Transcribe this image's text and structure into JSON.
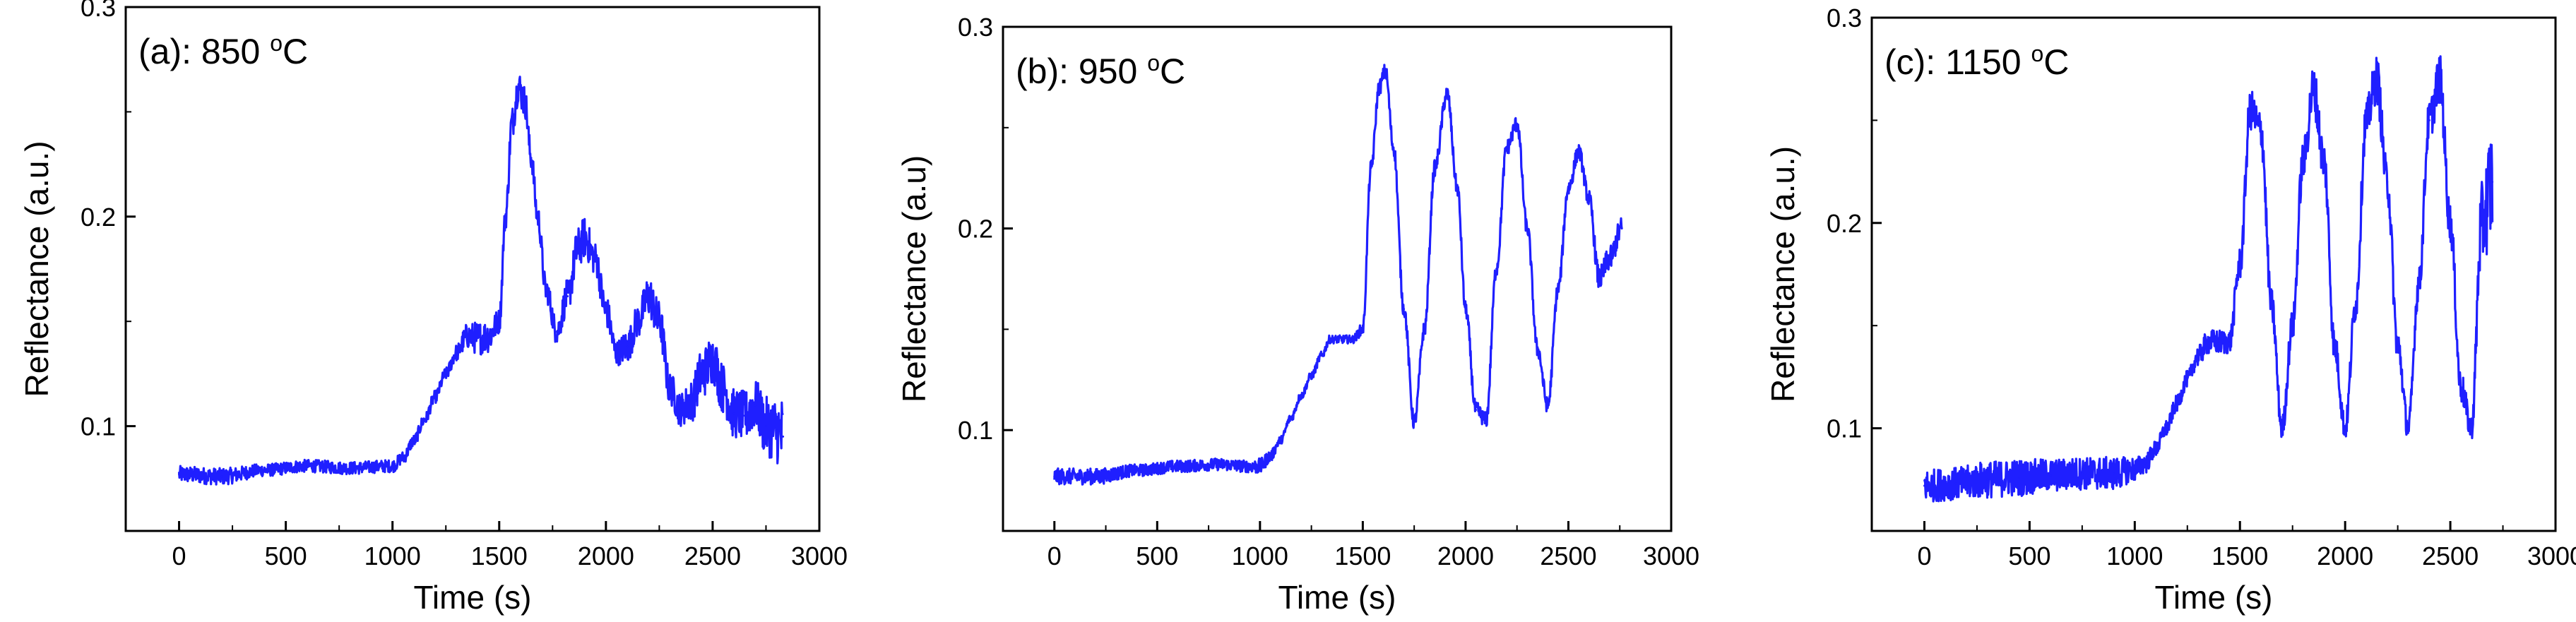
{
  "chart_data": [
    {
      "id": "a",
      "type": "line",
      "panel_label": "(a): 850 ",
      "temp_superscript": "o",
      "temp_unit": "C",
      "xlabel": "Time (s)",
      "ylabel": "Reflectance (a.u.)",
      "xlim": [
        -250,
        3000
      ],
      "ylim": [
        0.05,
        0.3
      ],
      "xticks": [
        0,
        500,
        1000,
        1500,
        2000,
        2500,
        3000
      ],
      "xtick_labels": [
        "0",
        "500",
        "1000",
        "1500",
        "2000",
        "2500",
        "3000"
      ],
      "yticks": [
        0.1,
        0.2,
        0.3
      ],
      "ytick_labels": [
        "0.1",
        "0.2",
        "0.3"
      ],
      "series_color": "#1f1fff",
      "series": [
        {
          "name": "850 °C",
          "x": [
            0,
            200,
            400,
            600,
            800,
            1000,
            1050,
            1100,
            1150,
            1200,
            1250,
            1300,
            1350,
            1400,
            1450,
            1500,
            1530,
            1560,
            1590,
            1620,
            1650,
            1680,
            1720,
            1770,
            1820,
            1870,
            1900,
            1950,
            2000,
            2050,
            2100,
            2150,
            2200,
            2250,
            2300,
            2350,
            2400,
            2450,
            2500,
            2550,
            2600,
            2650,
            2700,
            2750,
            2800,
            2830
          ],
          "y": [
            0.077,
            0.076,
            0.079,
            0.081,
            0.08,
            0.081,
            0.085,
            0.093,
            0.103,
            0.114,
            0.125,
            0.135,
            0.143,
            0.142,
            0.143,
            0.15,
            0.2,
            0.245,
            0.262,
            0.255,
            0.228,
            0.2,
            0.165,
            0.145,
            0.162,
            0.185,
            0.19,
            0.18,
            0.155,
            0.135,
            0.138,
            0.15,
            0.162,
            0.15,
            0.118,
            0.108,
            0.112,
            0.125,
            0.132,
            0.118,
            0.106,
            0.105,
            0.11,
            0.1,
            0.098,
            0.095
          ],
          "noise": [
            0.004,
            0.004,
            0.003,
            0.003,
            0.003,
            0.003,
            0.003,
            0.003,
            0.003,
            0.003,
            0.003,
            0.004,
            0.006,
            0.008,
            0.008,
            0.006,
            0.006,
            0.008,
            0.008,
            0.008,
            0.006,
            0.006,
            0.006,
            0.006,
            0.008,
            0.01,
            0.01,
            0.008,
            0.008,
            0.006,
            0.008,
            0.008,
            0.01,
            0.01,
            0.008,
            0.008,
            0.01,
            0.012,
            0.012,
            0.012,
            0.012,
            0.012,
            0.012,
            0.014,
            0.016,
            0.02
          ]
        }
      ]
    },
    {
      "id": "b",
      "type": "line",
      "panel_label": "(b): 950 ",
      "temp_superscript": "o",
      "temp_unit": "C",
      "xlabel": "Time (s)",
      "ylabel": "Reflectance (a.u)",
      "xlim": [
        -250,
        3000
      ],
      "ylim": [
        0.05,
        0.3
      ],
      "xticks": [
        0,
        500,
        1000,
        1500,
        2000,
        2500,
        3000
      ],
      "xtick_labels": [
        "0",
        "500",
        "1000",
        "1500",
        "2000",
        "2500",
        "3000"
      ],
      "yticks": [
        0.1,
        0.2,
        0.3
      ],
      "ytick_labels": [
        "0.1",
        "0.2",
        "0.3"
      ],
      "series_color": "#1f1fff",
      "series": [
        {
          "name": "950 °C",
          "x": [
            0,
            200,
            400,
            600,
            800,
            950,
            1000,
            1050,
            1100,
            1150,
            1200,
            1250,
            1300,
            1340,
            1400,
            1450,
            1500,
            1540,
            1580,
            1610,
            1650,
            1700,
            1750,
            1800,
            1850,
            1910,
            1960,
            2000,
            2050,
            2100,
            2150,
            2200,
            2250,
            2300,
            2350,
            2400,
            2450,
            2500,
            2550,
            2600,
            2650,
            2700,
            2760
          ],
          "y": [
            0.077,
            0.077,
            0.08,
            0.082,
            0.083,
            0.082,
            0.082,
            0.087,
            0.095,
            0.106,
            0.117,
            0.127,
            0.137,
            0.145,
            0.145,
            0.145,
            0.15,
            0.23,
            0.27,
            0.278,
            0.24,
            0.16,
            0.104,
            0.15,
            0.23,
            0.267,
            0.22,
            0.16,
            0.11,
            0.105,
            0.18,
            0.24,
            0.252,
            0.2,
            0.14,
            0.112,
            0.17,
            0.22,
            0.238,
            0.215,
            0.175,
            0.185,
            0.2
          ],
          "noise": [
            0.004,
            0.004,
            0.003,
            0.003,
            0.003,
            0.003,
            0.004,
            0.003,
            0.002,
            0.002,
            0.002,
            0.002,
            0.002,
            0.002,
            0.002,
            0.002,
            0.003,
            0.004,
            0.004,
            0.004,
            0.004,
            0.004,
            0.004,
            0.004,
            0.004,
            0.004,
            0.004,
            0.004,
            0.004,
            0.004,
            0.004,
            0.004,
            0.004,
            0.004,
            0.004,
            0.004,
            0.004,
            0.004,
            0.004,
            0.004,
            0.006,
            0.006,
            0.006
          ]
        }
      ]
    },
    {
      "id": "c",
      "type": "line",
      "panel_label": "(c): 1150 ",
      "temp_superscript": "o",
      "temp_unit": "C",
      "xlabel": "Time (s)",
      "ylabel": "Reflectance (a.u.)",
      "xlim": [
        -250,
        3000
      ],
      "ylim": [
        0.05,
        0.3
      ],
      "xticks": [
        0,
        500,
        1000,
        1500,
        2000,
        2500,
        3000
      ],
      "xtick_labels": [
        "0",
        "500",
        "1000",
        "1500",
        "2000",
        "2500",
        "3000"
      ],
      "yticks": [
        0.1,
        0.2,
        0.3
      ],
      "ytick_labels": [
        "0.1",
        "0.2",
        "0.3"
      ],
      "series_color": "#1f1fff",
      "series": [
        {
          "name": "1150 °C",
          "x": [
            0,
            150,
            300,
            450,
            600,
            750,
            900,
            1000,
            1050,
            1100,
            1150,
            1200,
            1250,
            1300,
            1350,
            1400,
            1450,
            1500,
            1550,
            1600,
            1650,
            1700,
            1750,
            1800,
            1850,
            1900,
            1950,
            2000,
            2050,
            2100,
            2150,
            2200,
            2250,
            2300,
            2350,
            2400,
            2450,
            2500,
            2550,
            2600,
            2650,
            2700
          ],
          "y": [
            0.072,
            0.073,
            0.075,
            0.076,
            0.077,
            0.078,
            0.078,
            0.08,
            0.083,
            0.09,
            0.1,
            0.112,
            0.124,
            0.135,
            0.142,
            0.142,
            0.142,
            0.18,
            0.255,
            0.245,
            0.16,
            0.1,
            0.15,
            0.23,
            0.265,
            0.23,
            0.14,
            0.1,
            0.16,
            0.25,
            0.27,
            0.22,
            0.14,
            0.1,
            0.17,
            0.25,
            0.27,
            0.2,
            0.12,
            0.1,
            0.2,
            0.22
          ],
          "noise": [
            0.008,
            0.008,
            0.009,
            0.009,
            0.008,
            0.008,
            0.008,
            0.006,
            0.005,
            0.004,
            0.004,
            0.004,
            0.004,
            0.005,
            0.006,
            0.006,
            0.006,
            0.008,
            0.01,
            0.01,
            0.008,
            0.006,
            0.008,
            0.01,
            0.012,
            0.01,
            0.008,
            0.006,
            0.008,
            0.01,
            0.012,
            0.01,
            0.008,
            0.006,
            0.008,
            0.01,
            0.012,
            0.01,
            0.008,
            0.006,
            0.02,
            0.03
          ]
        }
      ]
    }
  ]
}
